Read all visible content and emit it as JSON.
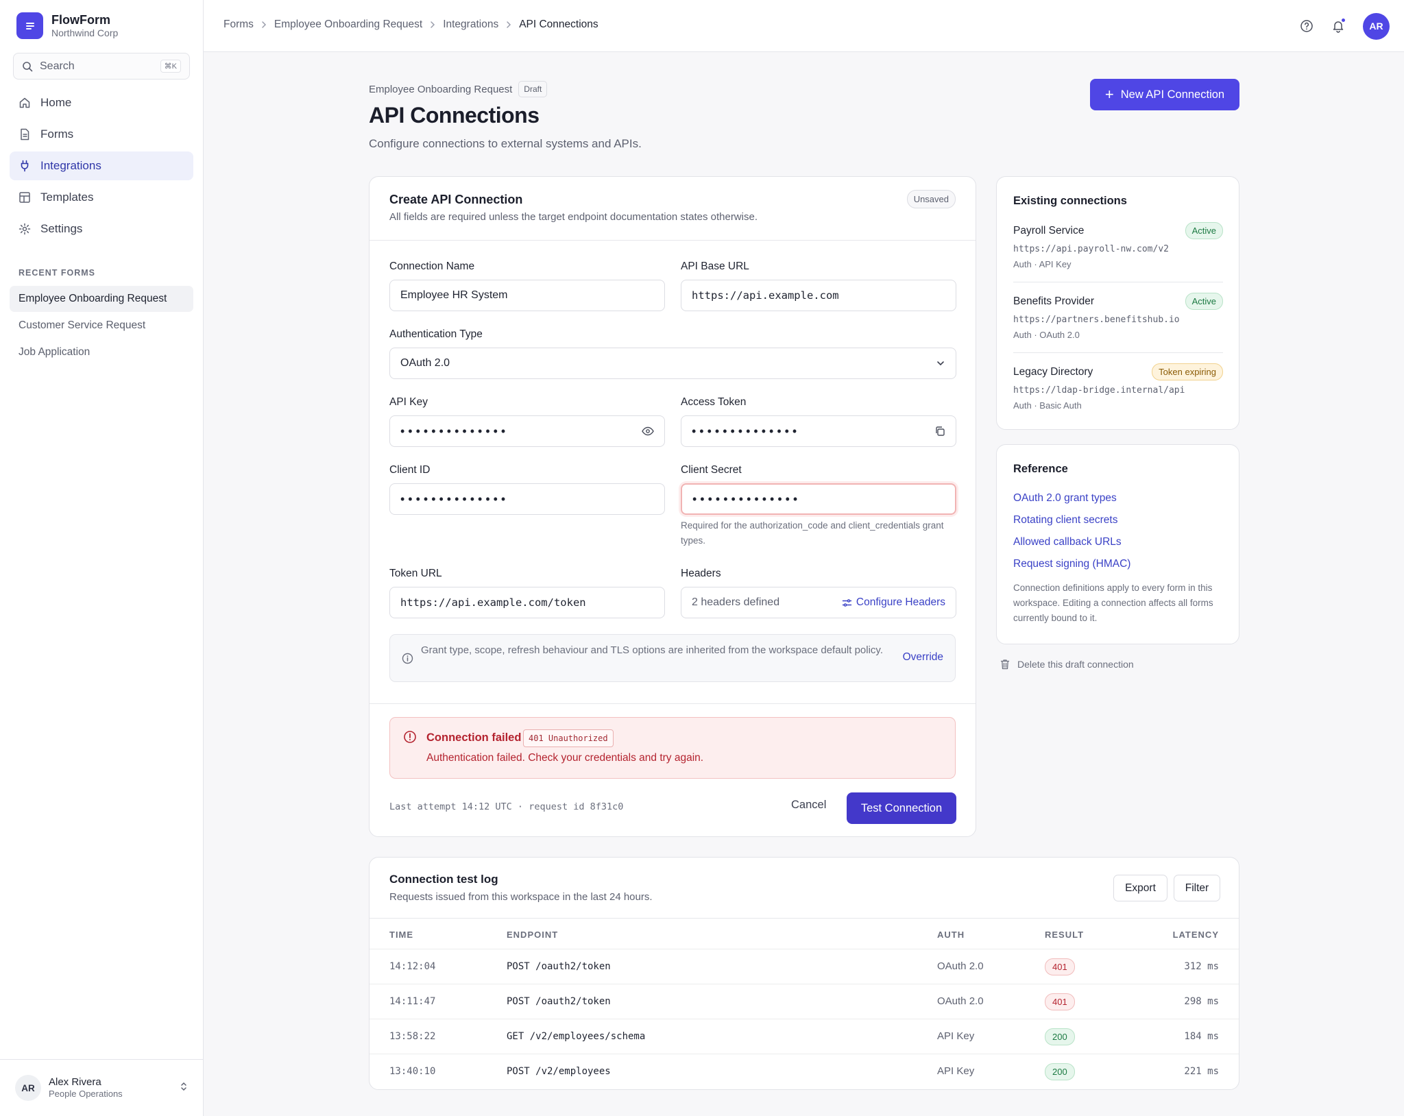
{
  "app": {
    "name": "FlowForm",
    "org": "Northwind Corp"
  },
  "search": {
    "placeholder": "Search",
    "shortcut": "⌘K"
  },
  "nav": {
    "items": [
      {
        "label": "Home",
        "icon": "home-icon"
      },
      {
        "label": "Forms",
        "icon": "document-icon"
      },
      {
        "label": "Integrations",
        "icon": "plug-icon",
        "active": true
      },
      {
        "label": "Templates",
        "icon": "template-icon"
      },
      {
        "label": "Settings",
        "icon": "gear-icon"
      }
    ]
  },
  "recent": {
    "heading": "RECENT FORMS",
    "items": [
      {
        "label": "Employee Onboarding Request",
        "active": true
      },
      {
        "label": "Customer Service Request"
      },
      {
        "label": "Job Application"
      }
    ]
  },
  "user": {
    "initials": "AR",
    "name": "Alex Rivera",
    "role": "People Operations"
  },
  "breadcrumb": [
    "Forms",
    "Employee Onboarding Request",
    "Integrations",
    "API Connections"
  ],
  "topbar": {
    "avatar_initials": "AR"
  },
  "page": {
    "form_name": "Employee Onboarding Request",
    "form_status": "Draft",
    "title": "API Connections",
    "subtitle": "Configure connections to external systems and APIs.",
    "new_button": "New API Connection"
  },
  "create": {
    "title": "Create API Connection",
    "subtitle": "All fields are required unless the target endpoint documentation states otherwise.",
    "status": "Unsaved",
    "connection_name": {
      "label": "Connection Name",
      "value": "Employee HR System"
    },
    "base_url": {
      "label": "API Base URL",
      "value": "https://api.example.com"
    },
    "auth_type": {
      "label": "Authentication Type",
      "value": "OAuth 2.0"
    },
    "api_key": {
      "label": "API Key",
      "value": "••••••••••••••"
    },
    "access_token": {
      "label": "Access Token",
      "value": "••••••••••••••"
    },
    "client_id": {
      "label": "Client ID",
      "value": "••••••••••••••"
    },
    "client_secret": {
      "label": "Client Secret",
      "value": "••••••••••••••",
      "hint": "Required for the authorization_code and client_credentials grant types."
    },
    "token_url": {
      "label": "Token URL",
      "value": "https://api.example.com/token"
    },
    "headers": {
      "label": "Headers",
      "value": "2 headers defined",
      "action": "Configure Headers"
    },
    "info": {
      "text": "Grant type, scope, refresh behaviour and TLS options are inherited from the workspace default policy.",
      "action": "Override"
    },
    "error": {
      "title": "Connection failed",
      "code": "401 Unauthorized",
      "message": "Authentication failed. Check your credentials and try again."
    },
    "last_attempt": "Last attempt 14:12 UTC · request id 8f31c0",
    "cancel": "Cancel",
    "test": "Test Connection"
  },
  "existing": {
    "title": "Existing connections",
    "items": [
      {
        "name": "Payroll Service",
        "url": "https://api.payroll-nw.com/v2",
        "auth": "Auth · API Key",
        "status": "Active",
        "status_color": "#1c7a42"
      },
      {
        "name": "Benefits Provider",
        "url": "https://partners.benefitshub.io",
        "auth": "Auth · OAuth 2.0",
        "status": "Active",
        "status_color": "#1c7a42"
      },
      {
        "name": "Legacy Directory",
        "url": "https://ldap-bridge.internal/api",
        "auth": "Auth · Basic Auth",
        "status": "Token expiring",
        "status_color": "#8a5a05"
      }
    ]
  },
  "reference": {
    "title": "Reference",
    "links": [
      "OAuth 2.0 grant types",
      "Rotating client secrets",
      "Allowed callback URLs",
      "Request signing (HMAC)"
    ],
    "note": "Connection definitions apply to every form in this workspace. Editing a connection affects all forms currently bound to it."
  },
  "delete_draft": "Delete this draft connection",
  "log": {
    "title": "Connection test log",
    "subtitle": "Requests issued from this workspace in the last 24 hours.",
    "export": "Export",
    "filter": "Filter",
    "columns": [
      "TIME",
      "ENDPOINT",
      "AUTH",
      "RESULT",
      "LATENCY"
    ],
    "rows": [
      {
        "time": "14:12:04",
        "endpoint": "POST /oauth2/token",
        "auth": "OAuth 2.0",
        "result": "401",
        "latency": "312 ms"
      },
      {
        "time": "14:11:47",
        "endpoint": "POST /oauth2/token",
        "auth": "OAuth 2.0",
        "result": "401",
        "latency": "298 ms"
      },
      {
        "time": "13:58:22",
        "endpoint": "GET /v2/employees/schema",
        "auth": "API Key",
        "result": "200",
        "latency": "184 ms"
      },
      {
        "time": "13:40:10",
        "endpoint": "POST /v2/employees",
        "auth": "API Key",
        "result": "200",
        "latency": "221 ms"
      }
    ]
  },
  "colors": {
    "accent": "#4f46e5",
    "error": "#b4232f",
    "success": "#1c7a42",
    "warning": "#8a5a05"
  }
}
